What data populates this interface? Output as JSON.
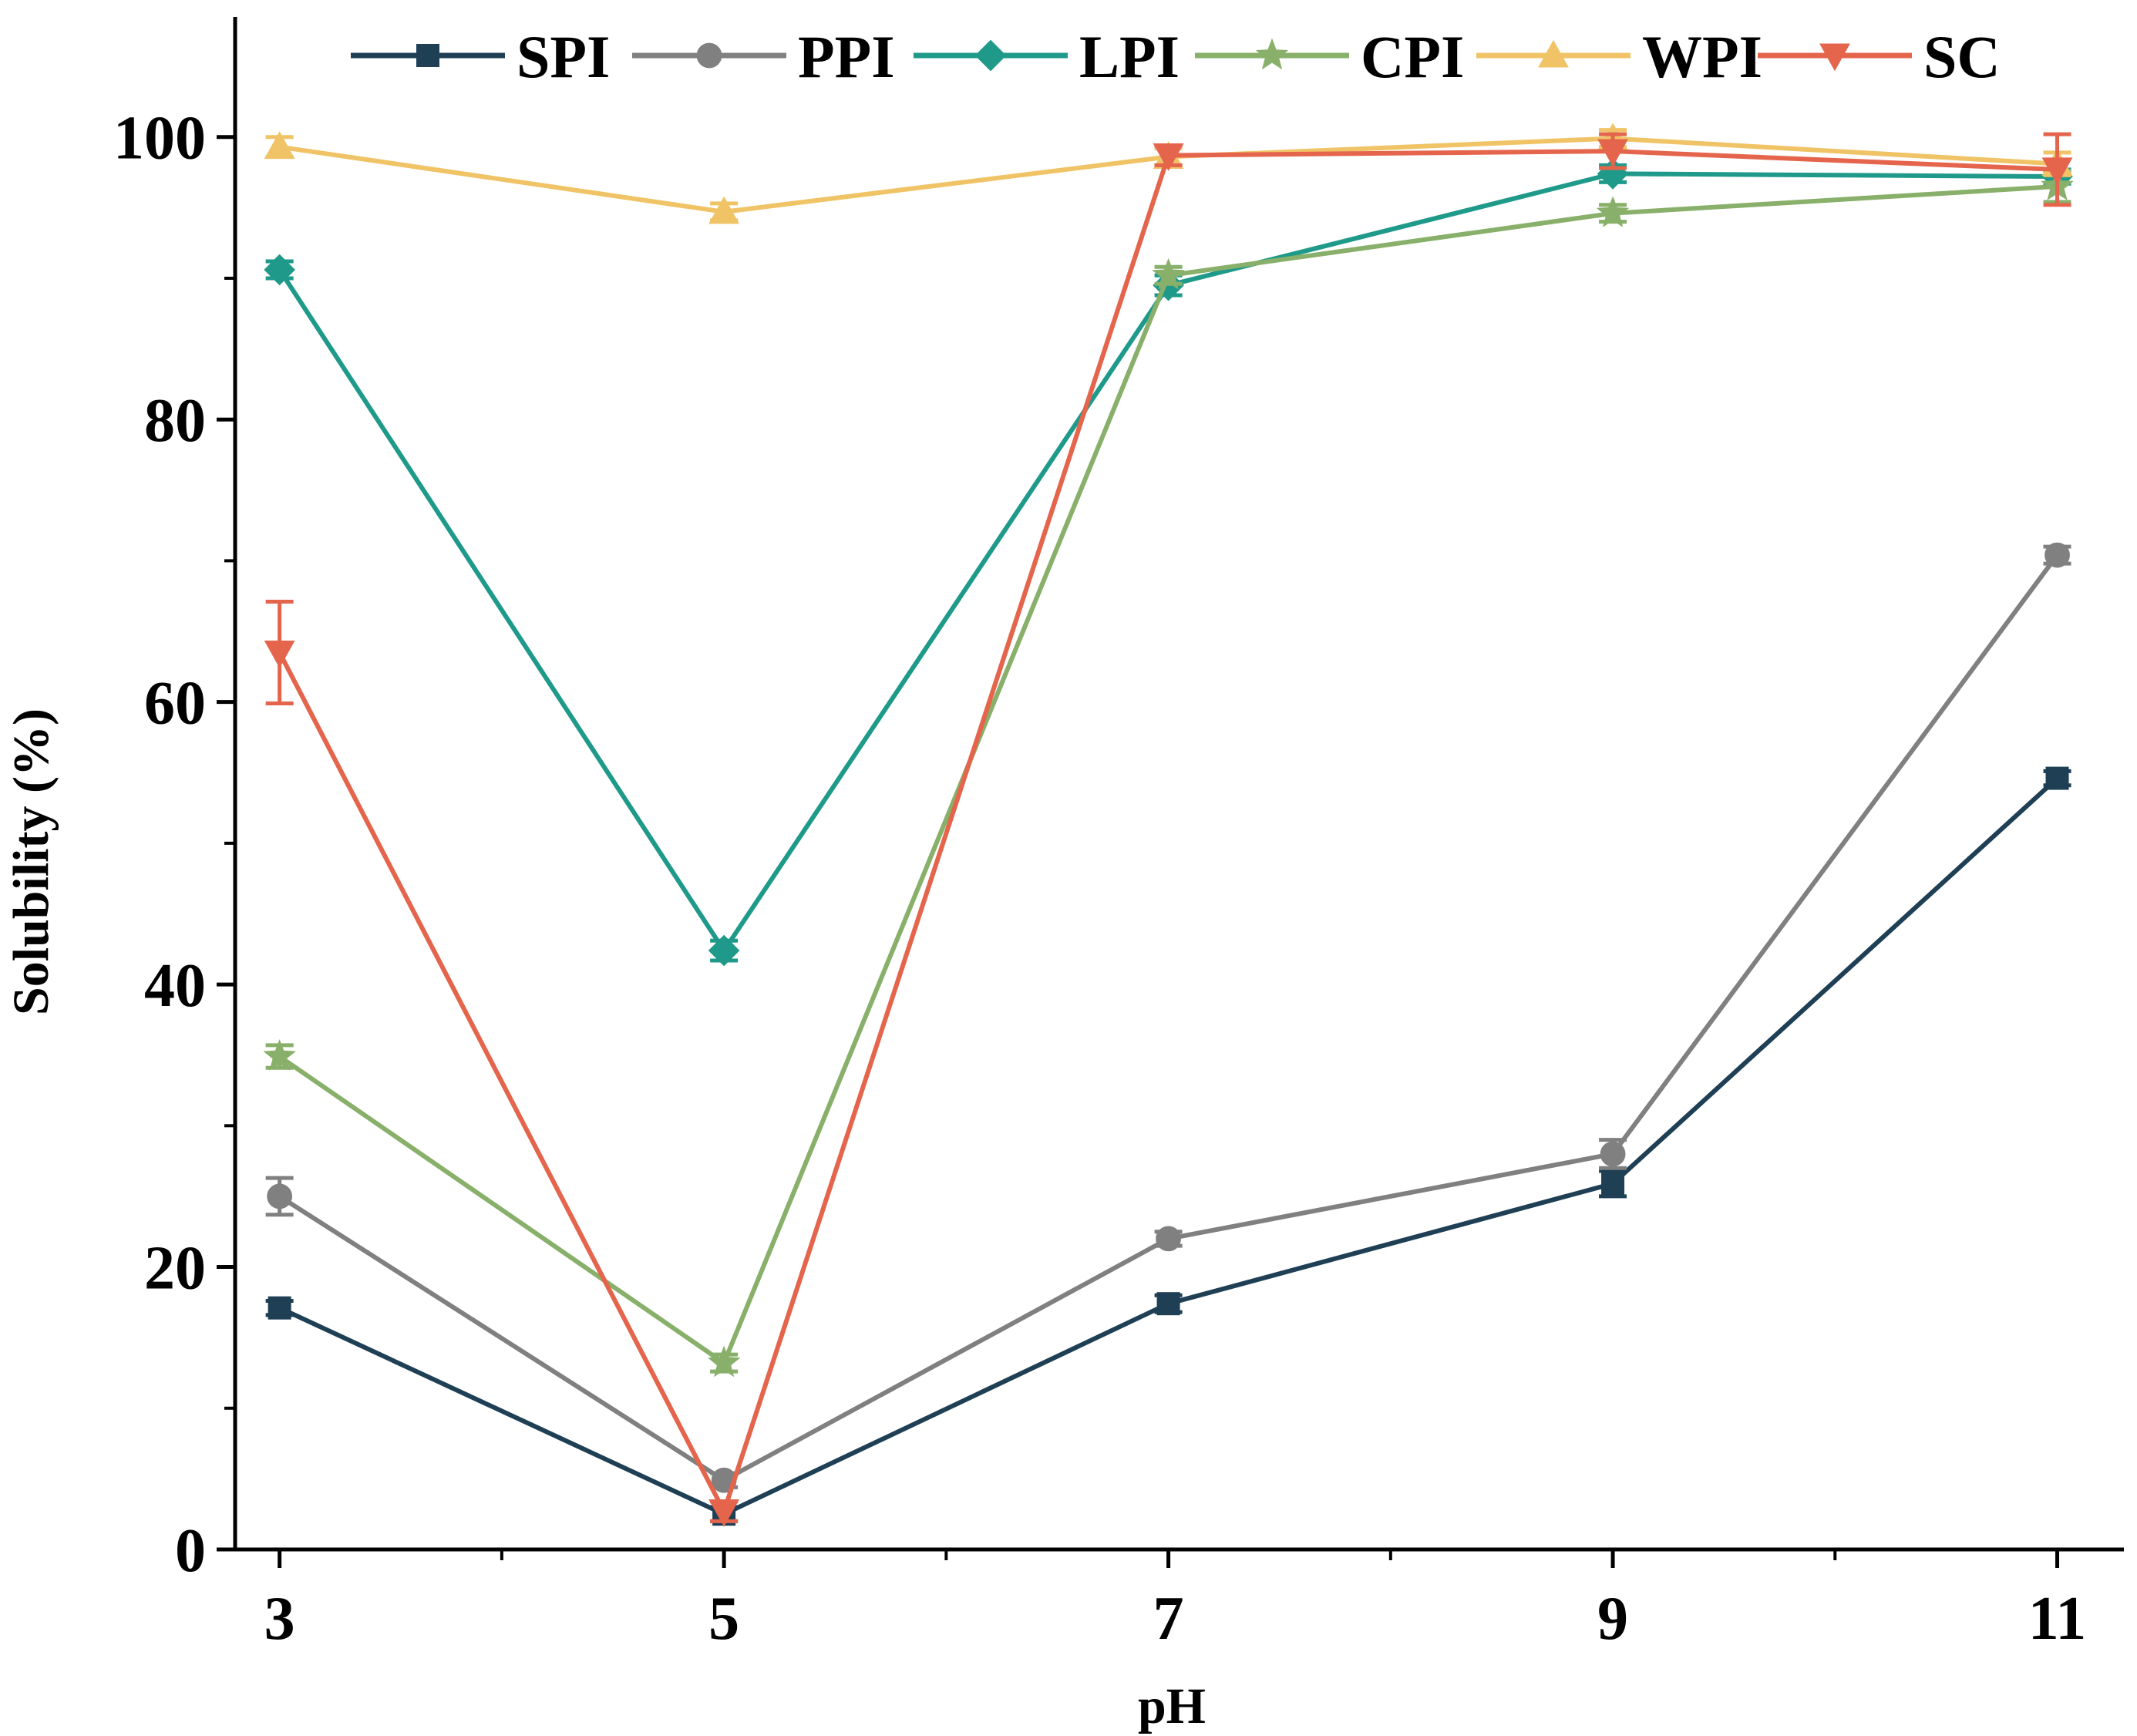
{
  "chart_data": {
    "type": "line",
    "title": "",
    "xlabel": "pH",
    "ylabel": "Solubility (%)",
    "x": [
      3,
      5,
      7,
      9,
      11
    ],
    "x_ticks": [
      "3",
      "5",
      "7",
      "9",
      "11"
    ],
    "y_ticks": [
      "0",
      "20",
      "40",
      "60",
      "80",
      "100"
    ],
    "y_tick_values": [
      0,
      20,
      40,
      60,
      80,
      100
    ],
    "y_minor_ticks": [
      10,
      30,
      50,
      70,
      90
    ],
    "xlim": [
      2.8,
      11.3
    ],
    "ylim": [
      0,
      108.5
    ],
    "legend_position": "top",
    "grid": false,
    "series": [
      {
        "name": "SPI",
        "color": "#1f3f55",
        "marker": "square",
        "values": [
          17.1,
          2.5,
          17.4,
          25.9,
          54.6
        ],
        "errors": [
          0.5,
          0.5,
          0.6,
          0.9,
          0.5
        ]
      },
      {
        "name": "PPI",
        "color": "#808080",
        "marker": "circle",
        "values": [
          25.0,
          4.9,
          22.0,
          28.0,
          70.4
        ],
        "errors": [
          1.3,
          0.5,
          0.5,
          1.0,
          0.6
        ]
      },
      {
        "name": "LPI",
        "color": "#1f9a8a",
        "marker": "diamond",
        "values": [
          90.6,
          42.4,
          89.5,
          97.4,
          97.2
        ],
        "errors": [
          0.6,
          0.7,
          0.7,
          0.6,
          0.5
        ]
      },
      {
        "name": "CPI",
        "color": "#88b06a",
        "marker": "star",
        "values": [
          34.9,
          13.2,
          90.2,
          94.6,
          96.5
        ],
        "errors": [
          0.8,
          0.6,
          0.6,
          0.6,
          1.1
        ]
      },
      {
        "name": "WPI",
        "color": "#f0c466",
        "marker": "triangle-up",
        "values": [
          99.3,
          94.7,
          98.6,
          99.9,
          98.1
        ],
        "errors": [
          0.7,
          0.6,
          0.6,
          0.6,
          0.8
        ]
      },
      {
        "name": "SC",
        "color": "#e4644c",
        "marker": "triangle-down",
        "values": [
          63.5,
          2.7,
          98.7,
          99.0,
          97.7
        ],
        "errors": [
          3.6,
          0.7,
          0.7,
          1.2,
          2.5
        ]
      }
    ]
  }
}
